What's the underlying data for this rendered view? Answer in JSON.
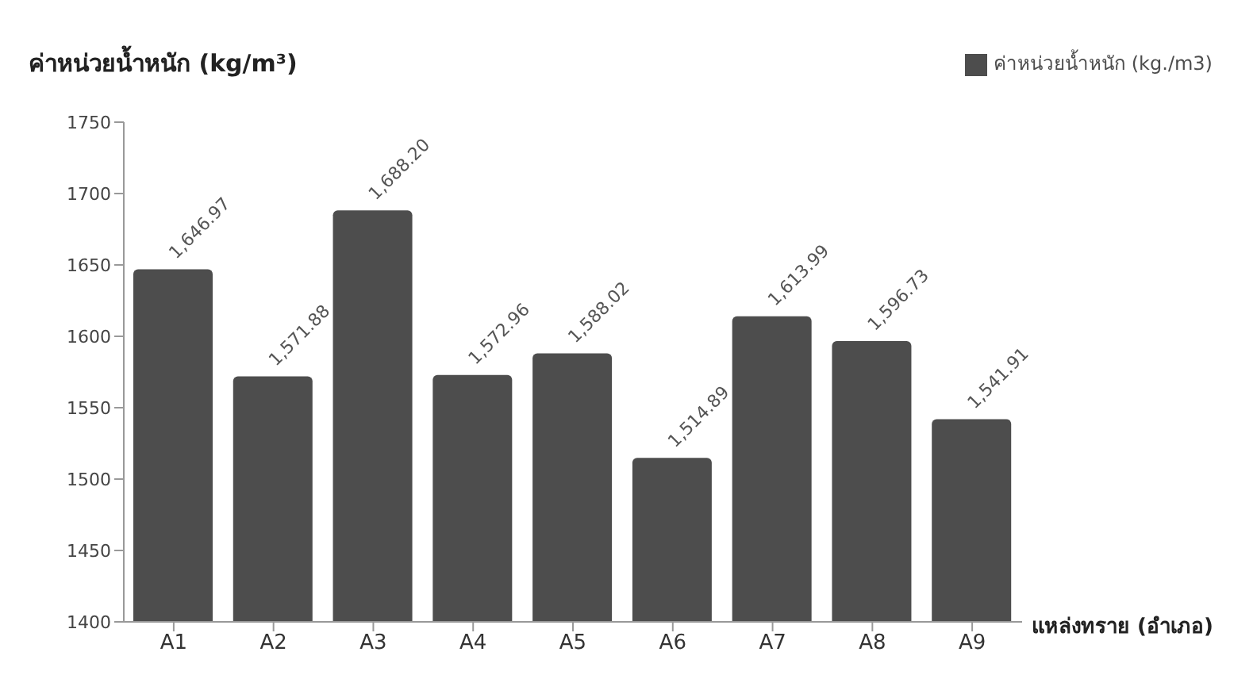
{
  "chart_data": {
    "type": "bar",
    "ylabel": "ค่าหน่วยน้ำหนัก (kg/m³)",
    "xlabel": "แหล่งทราย (อำเภอ)",
    "categories": [
      "A1",
      "A2",
      "A3",
      "A4",
      "A5",
      "A6",
      "A7",
      "A8",
      "A9"
    ],
    "series": [
      {
        "name": "ค่าหน่วยน้ำหนัก (kg./m3)",
        "color": "#4d4d4d",
        "values": [
          1646.97,
          1571.88,
          1688.2,
          1572.96,
          1588.02,
          1514.89,
          1613.99,
          1596.73,
          1541.91
        ],
        "value_labels": [
          "1,646.97",
          "1,571.88",
          "1,688.20",
          "1,572.96",
          "1,588.02",
          "1,514.89",
          "1,613.99",
          "1,596.73",
          "1,541.91"
        ]
      }
    ],
    "ylim": [
      1400,
      1750
    ],
    "yticks": [
      1400,
      1450,
      1500,
      1550,
      1600,
      1650,
      1700,
      1750
    ],
    "grid": false,
    "legend": "top right"
  }
}
